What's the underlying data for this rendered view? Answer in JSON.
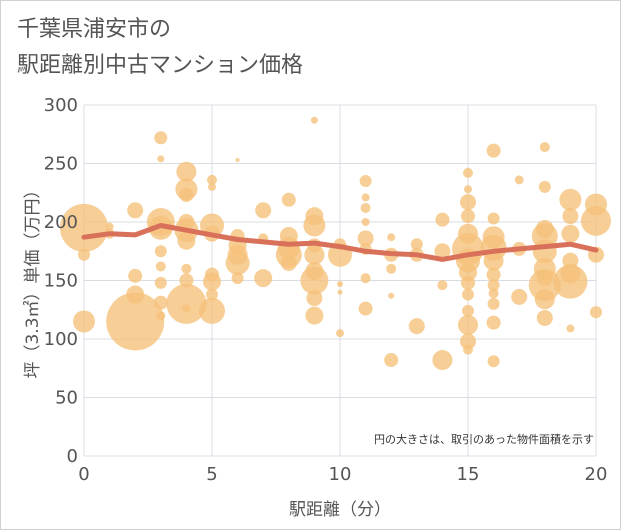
{
  "page": {
    "title_line1": "千葉県浦安市の",
    "title_line2": "駅距離別中古マンション価格"
  },
  "chart_data": {
    "type": "scatter",
    "title": "千葉県浦安市の\n駅距離別中古マンション価格",
    "xlabel": "駅距離（分）",
    "ylabel": "坪（3.3㎡）単価（万円）",
    "xlim": [
      0,
      20
    ],
    "ylim": [
      0,
      300
    ],
    "xticks": [
      "0",
      "5",
      "10",
      "15",
      "20"
    ],
    "yticks": [
      "0",
      "50",
      "100",
      "150",
      "200",
      "250",
      "300"
    ],
    "grid": true,
    "annotation": "円の大きさは、取引のあった物件面積を示す",
    "colors": {
      "bubble": "#f5c27a",
      "line": "#d9715a",
      "grid": "#d8dde3"
    },
    "trend": {
      "x": [
        0,
        1,
        2,
        3,
        4,
        5,
        6,
        7,
        8,
        9,
        10,
        11,
        12,
        13,
        14,
        15,
        16,
        17,
        18,
        19,
        20
      ],
      "y": [
        187,
        190,
        189,
        197,
        193,
        189,
        185,
        183,
        181,
        182,
        179,
        175,
        173,
        172,
        168,
        172,
        175,
        177,
        179,
        181,
        176
      ]
    },
    "bubbles": [
      {
        "x": 0,
        "y": 195,
        "s": 48
      },
      {
        "x": 0,
        "y": 115,
        "s": 22
      },
      {
        "x": 0,
        "y": 172,
        "s": 12
      },
      {
        "x": 1,
        "y": 190,
        "s": 10
      },
      {
        "x": 1,
        "y": 196,
        "s": 8
      },
      {
        "x": 2,
        "y": 115,
        "s": 58
      },
      {
        "x": 2,
        "y": 138,
        "s": 18
      },
      {
        "x": 2,
        "y": 154,
        "s": 14
      },
      {
        "x": 2,
        "y": 210,
        "s": 16
      },
      {
        "x": 3,
        "y": 272,
        "s": 13
      },
      {
        "x": 3,
        "y": 254,
        "s": 7
      },
      {
        "x": 3,
        "y": 200,
        "s": 28
      },
      {
        "x": 3,
        "y": 195,
        "s": 24
      },
      {
        "x": 3,
        "y": 175,
        "s": 12
      },
      {
        "x": 3,
        "y": 162,
        "s": 10
      },
      {
        "x": 3,
        "y": 148,
        "s": 12
      },
      {
        "x": 3,
        "y": 131,
        "s": 14
      },
      {
        "x": 3,
        "y": 120,
        "s": 9
      },
      {
        "x": 4,
        "y": 243,
        "s": 20
      },
      {
        "x": 4,
        "y": 228,
        "s": 22
      },
      {
        "x": 4,
        "y": 223,
        "s": 14
      },
      {
        "x": 4,
        "y": 200,
        "s": 16
      },
      {
        "x": 4,
        "y": 193,
        "s": 24
      },
      {
        "x": 4,
        "y": 184,
        "s": 18
      },
      {
        "x": 4,
        "y": 160,
        "s": 10
      },
      {
        "x": 4,
        "y": 150,
        "s": 14
      },
      {
        "x": 4,
        "y": 130,
        "s": 40
      },
      {
        "x": 4,
        "y": 126,
        "s": 8
      },
      {
        "x": 5,
        "y": 236,
        "s": 10
      },
      {
        "x": 5,
        "y": 230,
        "s": 8
      },
      {
        "x": 5,
        "y": 197,
        "s": 24
      },
      {
        "x": 5,
        "y": 190,
        "s": 16
      },
      {
        "x": 5,
        "y": 155,
        "s": 14
      },
      {
        "x": 5,
        "y": 149,
        "s": 18
      },
      {
        "x": 5,
        "y": 138,
        "s": 12
      },
      {
        "x": 5,
        "y": 124,
        "s": 26
      },
      {
        "x": 6,
        "y": 253,
        "s": 4
      },
      {
        "x": 6,
        "y": 188,
        "s": 14
      },
      {
        "x": 6,
        "y": 180,
        "s": 18
      },
      {
        "x": 6,
        "y": 172,
        "s": 20
      },
      {
        "x": 6,
        "y": 165,
        "s": 24
      },
      {
        "x": 6,
        "y": 152,
        "s": 12
      },
      {
        "x": 7,
        "y": 210,
        "s": 16
      },
      {
        "x": 7,
        "y": 186,
        "s": 10
      },
      {
        "x": 7,
        "y": 152,
        "s": 18
      },
      {
        "x": 8,
        "y": 219,
        "s": 14
      },
      {
        "x": 8,
        "y": 188,
        "s": 18
      },
      {
        "x": 8,
        "y": 178,
        "s": 22
      },
      {
        "x": 8,
        "y": 172,
        "s": 26
      },
      {
        "x": 8,
        "y": 165,
        "s": 16
      },
      {
        "x": 9,
        "y": 287,
        "s": 7
      },
      {
        "x": 9,
        "y": 205,
        "s": 18
      },
      {
        "x": 9,
        "y": 197,
        "s": 22
      },
      {
        "x": 9,
        "y": 180,
        "s": 14
      },
      {
        "x": 9,
        "y": 172,
        "s": 20
      },
      {
        "x": 9,
        "y": 158,
        "s": 18
      },
      {
        "x": 9,
        "y": 150,
        "s": 28
      },
      {
        "x": 9,
        "y": 135,
        "s": 16
      },
      {
        "x": 9,
        "y": 120,
        "s": 18
      },
      {
        "x": 10,
        "y": 181,
        "s": 12
      },
      {
        "x": 10,
        "y": 172,
        "s": 24
      },
      {
        "x": 10,
        "y": 147,
        "s": 6
      },
      {
        "x": 10,
        "y": 140,
        "s": 5
      },
      {
        "x": 10,
        "y": 105,
        "s": 8
      },
      {
        "x": 11,
        "y": 235,
        "s": 12
      },
      {
        "x": 11,
        "y": 221,
        "s": 8
      },
      {
        "x": 11,
        "y": 212,
        "s": 10
      },
      {
        "x": 11,
        "y": 200,
        "s": 8
      },
      {
        "x": 11,
        "y": 186,
        "s": 16
      },
      {
        "x": 11,
        "y": 177,
        "s": 12
      },
      {
        "x": 11,
        "y": 152,
        "s": 10
      },
      {
        "x": 11,
        "y": 126,
        "s": 14
      },
      {
        "x": 12,
        "y": 187,
        "s": 8
      },
      {
        "x": 12,
        "y": 172,
        "s": 14
      },
      {
        "x": 12,
        "y": 160,
        "s": 10
      },
      {
        "x": 12,
        "y": 137,
        "s": 6
      },
      {
        "x": 12,
        "y": 82,
        "s": 14
      },
      {
        "x": 13,
        "y": 181,
        "s": 12
      },
      {
        "x": 13,
        "y": 172,
        "s": 14
      },
      {
        "x": 13,
        "y": 111,
        "s": 16
      },
      {
        "x": 14,
        "y": 202,
        "s": 14
      },
      {
        "x": 14,
        "y": 175,
        "s": 16
      },
      {
        "x": 14,
        "y": 146,
        "s": 10
      },
      {
        "x": 14,
        "y": 82,
        "s": 20
      },
      {
        "x": 15,
        "y": 242,
        "s": 10
      },
      {
        "x": 15,
        "y": 228,
        "s": 8
      },
      {
        "x": 15,
        "y": 217,
        "s": 16
      },
      {
        "x": 15,
        "y": 205,
        "s": 14
      },
      {
        "x": 15,
        "y": 190,
        "s": 20
      },
      {
        "x": 15,
        "y": 177,
        "s": 32
      },
      {
        "x": 15,
        "y": 167,
        "s": 24
      },
      {
        "x": 15,
        "y": 157,
        "s": 18
      },
      {
        "x": 15,
        "y": 148,
        "s": 14
      },
      {
        "x": 15,
        "y": 138,
        "s": 12
      },
      {
        "x": 15,
        "y": 124,
        "s": 12
      },
      {
        "x": 15,
        "y": 112,
        "s": 20
      },
      {
        "x": 15,
        "y": 98,
        "s": 16
      },
      {
        "x": 15,
        "y": 91,
        "s": 10
      },
      {
        "x": 16,
        "y": 261,
        "s": 14
      },
      {
        "x": 16,
        "y": 203,
        "s": 12
      },
      {
        "x": 16,
        "y": 187,
        "s": 22
      },
      {
        "x": 16,
        "y": 178,
        "s": 26
      },
      {
        "x": 16,
        "y": 167,
        "s": 20
      },
      {
        "x": 16,
        "y": 155,
        "s": 14
      },
      {
        "x": 16,
        "y": 146,
        "s": 12
      },
      {
        "x": 16,
        "y": 139,
        "s": 10
      },
      {
        "x": 16,
        "y": 130,
        "s": 12
      },
      {
        "x": 16,
        "y": 114,
        "s": 14
      },
      {
        "x": 16,
        "y": 81,
        "s": 12
      },
      {
        "x": 17,
        "y": 236,
        "s": 9
      },
      {
        "x": 17,
        "y": 177,
        "s": 14
      },
      {
        "x": 17,
        "y": 136,
        "s": 16
      },
      {
        "x": 18,
        "y": 264,
        "s": 10
      },
      {
        "x": 18,
        "y": 230,
        "s": 12
      },
      {
        "x": 18,
        "y": 194,
        "s": 18
      },
      {
        "x": 18,
        "y": 188,
        "s": 26
      },
      {
        "x": 18,
        "y": 175,
        "s": 24
      },
      {
        "x": 18,
        "y": 160,
        "s": 22
      },
      {
        "x": 18,
        "y": 152,
        "s": 16
      },
      {
        "x": 18,
        "y": 146,
        "s": 32
      },
      {
        "x": 18,
        "y": 134,
        "s": 20
      },
      {
        "x": 18,
        "y": 118,
        "s": 16
      },
      {
        "x": 19,
        "y": 219,
        "s": 22
      },
      {
        "x": 19,
        "y": 205,
        "s": 16
      },
      {
        "x": 19,
        "y": 190,
        "s": 18
      },
      {
        "x": 19,
        "y": 167,
        "s": 16
      },
      {
        "x": 19,
        "y": 156,
        "s": 20
      },
      {
        "x": 19,
        "y": 149,
        "s": 34
      },
      {
        "x": 19,
        "y": 109,
        "s": 8
      },
      {
        "x": 20,
        "y": 215,
        "s": 22
      },
      {
        "x": 20,
        "y": 201,
        "s": 30
      },
      {
        "x": 20,
        "y": 172,
        "s": 16
      },
      {
        "x": 20,
        "y": 123,
        "s": 12
      }
    ]
  }
}
